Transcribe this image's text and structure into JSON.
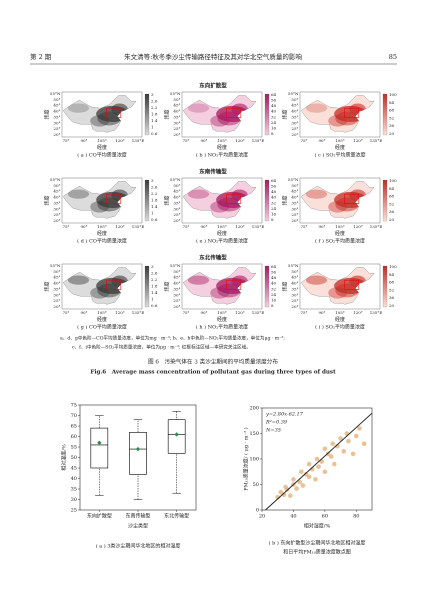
{
  "header": {
    "issue": "第 2 期",
    "title": "朱文清等:秋冬季沙尘传输路径特征及其对华北空气质量的影响",
    "page": "85"
  },
  "figure6": {
    "rows": [
      "东向扩散型",
      "东南传输型",
      "东北传输型"
    ],
    "panels": [
      "( a ) CO平均质量浓度",
      "( b ) NO₂平均质量浓度",
      "( c ) SO₂平均质量浓度",
      "( d ) CO平均质量浓度",
      "( e ) NO₂平均质量浓度",
      "( f ) SO₂平均质量浓度",
      "( g ) CO平均质量浓度",
      "( h ) NO₂平均质量浓度",
      "( i ) SO₂平均质量浓度"
    ],
    "lat_label": "纬度",
    "lon_label": "经度",
    "lat_ticks": [
      "55°N",
      "50°",
      "45°",
      "40°",
      "35°",
      "30°",
      "25°",
      "20°"
    ],
    "lon_ticks": [
      "75°",
      "90°",
      "105°",
      "120°",
      "135°E"
    ],
    "colorbars": [
      [
        3.0,
        2.6,
        2.2,
        1.8,
        1.4,
        1.0,
        0.6
      ],
      [
        64,
        56,
        48,
        40,
        32,
        24,
        16,
        8
      ],
      [
        100,
        84,
        68,
        52,
        36,
        20
      ]
    ],
    "notes": [
      "a、d、g中色阶—CO平均质量浓度，单位为mg · m⁻³; b、e、h中色阶—NO₂平均质量浓度，单位为μg · m⁻³;",
      "c、f、i中色阶—SO₂平均质量浓度，单位为μg · m⁻³; 红框标注区域—本研究关注区域。"
    ],
    "caption_cn": "图 6　污染气体在 3 类沙尘期间的平均质量浓度分布",
    "caption_en": "Fig.6　Average mass concentration of pollutant gas during three types of dust"
  },
  "figure7": {
    "captions": [
      "( a ) 3类沙尘期间华北地区的相对湿度",
      "( b ) 东向扩散型沙尘期间华北地区相对湿度",
      "和日平均PM₁₀质量浓度散点图"
    ]
  },
  "chart_data": [
    {
      "type": "box",
      "categories": [
        "东向扩散型",
        "东南传输型",
        "东北传输型"
      ],
      "x_label": "沙尘类型",
      "y_label": "相对湿度/%",
      "ylim": [
        25,
        75
      ],
      "yticks": [
        25,
        30,
        35,
        40,
        45,
        50,
        55,
        60,
        65,
        70,
        75
      ],
      "whisker_low": [
        32,
        30,
        33
      ],
      "q1": [
        45,
        42,
        52
      ],
      "median": [
        56,
        54,
        61
      ],
      "q3": [
        64,
        62,
        68
      ],
      "whisker_high": [
        70,
        68,
        72
      ],
      "mean": [
        57,
        54,
        61
      ],
      "color": "#000000",
      "mean_color": "#2e8b57"
    },
    {
      "type": "scatter",
      "x_label": "相对湿度/%",
      "y_label": "PM₁₀质量浓度/ ( μg · m⁻³ )",
      "annotations": [
        "y=2.80x-62.17",
        "R²=0.39",
        "N=35"
      ],
      "slope": 2.8,
      "intercept": -62.17,
      "x": [
        30,
        32,
        34,
        35,
        36,
        38,
        40,
        40,
        42,
        44,
        45,
        46,
        48,
        50,
        50,
        52,
        54,
        55,
        56,
        58,
        60,
        60,
        62,
        64,
        65,
        66,
        68,
        70,
        72,
        74,
        75,
        78,
        80,
        82,
        85
      ],
      "y": [
        25,
        35,
        30,
        45,
        40,
        28,
        50,
        60,
        42,
        55,
        75,
        48,
        70,
        65,
        90,
        80,
        60,
        100,
        85,
        95,
        120,
        75,
        110,
        105,
        130,
        90,
        125,
        140,
        115,
        150,
        135,
        110,
        145,
        160,
        130
      ],
      "xlim": [
        20,
        90
      ],
      "ylim": [
        0,
        200
      ],
      "xticks": [
        20,
        40,
        60,
        80
      ],
      "yticks": [
        0,
        50,
        100,
        150,
        200
      ],
      "color": "#e3b27a",
      "line_color": "#222222"
    }
  ]
}
